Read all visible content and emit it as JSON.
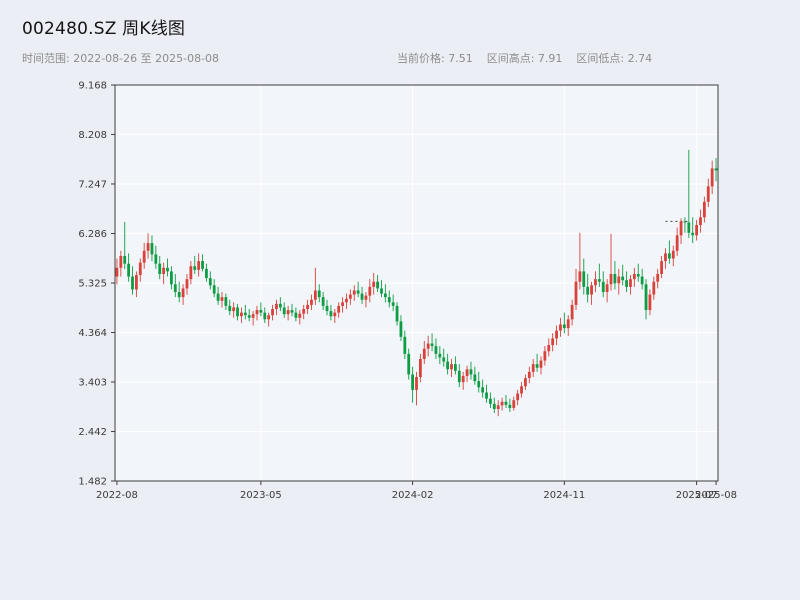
{
  "header": {
    "title": "002480.SZ 周K线图",
    "time_range_label": "时间范围: 2022-08-26 至 2025-08-08",
    "current_price_label": "当前价格: 7.51",
    "range_high_label": "区间高点: 7.91",
    "range_low_label": "区间低点: 2.74"
  },
  "colors": {
    "background": "#ebeef4",
    "plot_background": "#f2f5f9",
    "up": "#d9423b",
    "down": "#0e9d45",
    "grid": "#ffffff",
    "frame": "#3d3d3d",
    "tick_text": "#3a3a3a",
    "subtitle_text": "#8c8c8c"
  },
  "chart_data": {
    "type": "candlestick",
    "title": "002480.SZ 周K线图",
    "frequency": "weekly",
    "date_start": "2022-08-26",
    "date_end": "2025-08-08",
    "current_price": 7.51,
    "range_high": 7.91,
    "range_low": 2.74,
    "ylim": [
      1.482,
      9.168
    ],
    "y_ticks": [
      9.168,
      8.208,
      7.247,
      6.286,
      5.325,
      4.364,
      3.403,
      2.442,
      1.482
    ],
    "x_ticks": [
      {
        "label": "2022-08",
        "week": 0
      },
      {
        "label": "2023-05",
        "week": 37
      },
      {
        "label": "2024-02",
        "week": 76
      },
      {
        "label": "2024-11",
        "week": 115
      },
      {
        "label": "2025-07",
        "week": 149
      },
      {
        "label": "2025-08",
        "week": 154
      }
    ],
    "up_color": "#d9423b",
    "down_color": "#0e9d45",
    "annotations": [
      {
        "type": "dashed_hline",
        "value": 6.52,
        "week_start": 141,
        "week_end": 147,
        "color": "#444444"
      }
    ],
    "ohlc_format": [
      "open",
      "high",
      "low",
      "close"
    ],
    "candles": [
      [
        5.45,
        5.8,
        5.3,
        5.62
      ],
      [
        5.62,
        5.95,
        5.45,
        5.85
      ],
      [
        5.85,
        6.51,
        5.6,
        5.7
      ],
      [
        5.7,
        5.9,
        5.35,
        5.45
      ],
      [
        5.45,
        5.65,
        5.1,
        5.2
      ],
      [
        5.2,
        5.55,
        5.05,
        5.48
      ],
      [
        5.48,
        5.8,
        5.35,
        5.72
      ],
      [
        5.72,
        6.1,
        5.6,
        5.95
      ],
      [
        5.95,
        6.29,
        5.8,
        6.1
      ],
      [
        6.1,
        6.25,
        5.75,
        5.88
      ],
      [
        5.88,
        6.05,
        5.6,
        5.7
      ],
      [
        5.7,
        5.85,
        5.4,
        5.5
      ],
      [
        5.5,
        5.72,
        5.3,
        5.62
      ],
      [
        5.62,
        5.8,
        5.45,
        5.55
      ],
      [
        5.55,
        5.65,
        5.2,
        5.3
      ],
      [
        5.3,
        5.5,
        5.05,
        5.15
      ],
      [
        5.15,
        5.35,
        4.95,
        5.05
      ],
      [
        5.05,
        5.3,
        4.9,
        5.22
      ],
      [
        5.22,
        5.5,
        5.1,
        5.4
      ],
      [
        5.4,
        5.75,
        5.3,
        5.65
      ],
      [
        5.65,
        5.85,
        5.5,
        5.58
      ],
      [
        5.58,
        5.9,
        5.45,
        5.75
      ],
      [
        5.75,
        5.88,
        5.55,
        5.6
      ],
      [
        5.6,
        5.7,
        5.35,
        5.42
      ],
      [
        5.42,
        5.55,
        5.2,
        5.28
      ],
      [
        5.28,
        5.4,
        5.05,
        5.12
      ],
      [
        5.12,
        5.25,
        4.9,
        4.98
      ],
      [
        4.98,
        5.15,
        4.85,
        5.05
      ],
      [
        5.05,
        5.12,
        4.8,
        4.88
      ],
      [
        4.88,
        5.0,
        4.7,
        4.78
      ],
      [
        4.78,
        4.95,
        4.65,
        4.85
      ],
      [
        4.85,
        4.92,
        4.6,
        4.68
      ],
      [
        4.68,
        4.85,
        4.55,
        4.75
      ],
      [
        4.75,
        4.9,
        4.62,
        4.7
      ],
      [
        4.7,
        4.82,
        4.58,
        4.65
      ],
      [
        4.65,
        4.78,
        4.5,
        4.72
      ],
      [
        4.72,
        4.88,
        4.6,
        4.8
      ],
      [
        4.8,
        4.95,
        4.68,
        4.75
      ],
      [
        4.75,
        4.85,
        4.55,
        4.62
      ],
      [
        4.62,
        4.75,
        4.48,
        4.7
      ],
      [
        4.7,
        4.9,
        4.6,
        4.82
      ],
      [
        4.82,
        5.0,
        4.7,
        4.92
      ],
      [
        4.92,
        5.05,
        4.78,
        4.85
      ],
      [
        4.85,
        4.95,
        4.65,
        4.72
      ],
      [
        4.72,
        4.88,
        4.6,
        4.8
      ],
      [
        4.8,
        4.92,
        4.68,
        4.75
      ],
      [
        4.75,
        4.85,
        4.58,
        4.65
      ],
      [
        4.65,
        4.8,
        4.52,
        4.73
      ],
      [
        4.73,
        4.9,
        4.62,
        4.82
      ],
      [
        4.82,
        5.0,
        4.72,
        4.9
      ],
      [
        4.9,
        5.1,
        4.8,
        5.0
      ],
      [
        5.0,
        5.62,
        4.9,
        5.18
      ],
      [
        5.18,
        5.3,
        4.95,
        5.05
      ],
      [
        5.05,
        5.15,
        4.8,
        4.88
      ],
      [
        4.88,
        5.0,
        4.7,
        4.78
      ],
      [
        4.78,
        4.9,
        4.6,
        4.68
      ],
      [
        4.68,
        4.82,
        4.55,
        4.75
      ],
      [
        4.75,
        4.95,
        4.65,
        4.88
      ],
      [
        4.88,
        5.05,
        4.75,
        4.95
      ],
      [
        4.95,
        5.12,
        4.82,
        5.02
      ],
      [
        5.02,
        5.2,
        4.9,
        5.1
      ],
      [
        5.1,
        5.28,
        4.98,
        5.18
      ],
      [
        5.18,
        5.35,
        5.05,
        5.12
      ],
      [
        5.12,
        5.25,
        4.92,
        5.0
      ],
      [
        5.0,
        5.15,
        4.85,
        5.08
      ],
      [
        5.08,
        5.4,
        4.95,
        5.25
      ],
      [
        5.25,
        5.52,
        5.1,
        5.35
      ],
      [
        5.35,
        5.48,
        5.15,
        5.22
      ],
      [
        5.22,
        5.38,
        5.05,
        5.12
      ],
      [
        5.12,
        5.3,
        4.95,
        5.05
      ],
      [
        5.05,
        5.18,
        4.85,
        4.95
      ],
      [
        4.95,
        5.1,
        4.78,
        4.88
      ],
      [
        4.88,
        4.95,
        4.5,
        4.58
      ],
      [
        4.58,
        4.7,
        4.2,
        4.28
      ],
      [
        4.28,
        4.4,
        3.85,
        3.95
      ],
      [
        3.95,
        4.05,
        3.45,
        3.55
      ],
      [
        3.55,
        3.7,
        3.0,
        3.25
      ],
      [
        3.25,
        3.6,
        2.95,
        3.5
      ],
      [
        3.5,
        3.95,
        3.4,
        3.85
      ],
      [
        3.85,
        4.2,
        3.75,
        4.05
      ],
      [
        4.05,
        4.3,
        3.9,
        4.15
      ],
      [
        4.15,
        4.35,
        4.0,
        4.1
      ],
      [
        4.1,
        4.25,
        3.85,
        3.95
      ],
      [
        3.95,
        4.1,
        3.75,
        3.88
      ],
      [
        3.88,
        4.05,
        3.7,
        3.8
      ],
      [
        3.8,
        3.95,
        3.55,
        3.65
      ],
      [
        3.65,
        3.85,
        3.5,
        3.75
      ],
      [
        3.75,
        3.9,
        3.55,
        3.62
      ],
      [
        3.62,
        3.75,
        3.3,
        3.4
      ],
      [
        3.4,
        3.6,
        3.25,
        3.52
      ],
      [
        3.52,
        3.72,
        3.4,
        3.65
      ],
      [
        3.65,
        3.8,
        3.45,
        3.55
      ],
      [
        3.55,
        3.7,
        3.35,
        3.42
      ],
      [
        3.42,
        3.6,
        3.2,
        3.3
      ],
      [
        3.3,
        3.45,
        3.1,
        3.2
      ],
      [
        3.2,
        3.35,
        3.0,
        3.08
      ],
      [
        3.08,
        3.2,
        2.9,
        2.98
      ],
      [
        2.98,
        3.1,
        2.8,
        2.88
      ],
      [
        2.88,
        3.05,
        2.74,
        2.95
      ],
      [
        2.95,
        3.1,
        2.85,
        3.02
      ],
      [
        3.02,
        3.15,
        2.9,
        2.96
      ],
      [
        2.96,
        3.08,
        2.82,
        2.9
      ],
      [
        2.9,
        3.12,
        2.85,
        3.05
      ],
      [
        3.05,
        3.25,
        2.95,
        3.18
      ],
      [
        3.18,
        3.4,
        3.1,
        3.32
      ],
      [
        3.32,
        3.55,
        3.25,
        3.48
      ],
      [
        3.48,
        3.7,
        3.38,
        3.6
      ],
      [
        3.6,
        3.85,
        3.5,
        3.75
      ],
      [
        3.75,
        3.95,
        3.6,
        3.68
      ],
      [
        3.68,
        3.9,
        3.55,
        3.82
      ],
      [
        3.82,
        4.1,
        3.72,
        4.0
      ],
      [
        4.0,
        4.25,
        3.9,
        4.12
      ],
      [
        4.12,
        4.35,
        4.0,
        4.25
      ],
      [
        4.25,
        4.5,
        4.12,
        4.4
      ],
      [
        4.4,
        4.65,
        4.28,
        4.52
      ],
      [
        4.52,
        4.75,
        4.35,
        4.45
      ],
      [
        4.45,
        4.7,
        4.3,
        4.62
      ],
      [
        4.62,
        5.0,
        4.5,
        4.9
      ],
      [
        4.9,
        5.6,
        4.8,
        5.35
      ],
      [
        5.35,
        6.3,
        5.2,
        5.55
      ],
      [
        5.55,
        5.8,
        5.1,
        5.25
      ],
      [
        5.25,
        5.5,
        4.95,
        5.1
      ],
      [
        5.1,
        5.35,
        4.9,
        5.28
      ],
      [
        5.28,
        5.55,
        5.15,
        5.4
      ],
      [
        5.4,
        5.7,
        5.25,
        5.35
      ],
      [
        5.35,
        5.55,
        5.05,
        5.15
      ],
      [
        5.15,
        5.4,
        4.95,
        5.3
      ],
      [
        5.3,
        6.28,
        5.18,
        5.5
      ],
      [
        5.5,
        5.75,
        5.2,
        5.32
      ],
      [
        5.32,
        5.6,
        5.1,
        5.45
      ],
      [
        5.45,
        5.68,
        5.28,
        5.38
      ],
      [
        5.38,
        5.55,
        5.15,
        5.25
      ],
      [
        5.25,
        5.48,
        5.1,
        5.4
      ],
      [
        5.4,
        5.62,
        5.25,
        5.5
      ],
      [
        5.5,
        5.7,
        5.35,
        5.45
      ],
      [
        5.45,
        5.6,
        5.2,
        5.3
      ],
      [
        5.3,
        5.4,
        4.62,
        4.8
      ],
      [
        4.8,
        5.2,
        4.7,
        5.1
      ],
      [
        5.1,
        5.45,
        5.0,
        5.35
      ],
      [
        5.35,
        5.6,
        5.22,
        5.5
      ],
      [
        5.5,
        5.85,
        5.42,
        5.75
      ],
      [
        5.75,
        6.0,
        5.6,
        5.9
      ],
      [
        5.9,
        6.15,
        5.7,
        5.8
      ],
      [
        5.8,
        6.05,
        5.65,
        5.95
      ],
      [
        5.95,
        6.4,
        5.85,
        6.25
      ],
      [
        6.25,
        6.58,
        6.08,
        6.52
      ],
      [
        6.52,
        6.6,
        6.3,
        6.5
      ],
      [
        6.5,
        7.91,
        6.2,
        6.3
      ],
      [
        6.3,
        6.6,
        6.1,
        6.25
      ],
      [
        6.25,
        6.55,
        6.15,
        6.45
      ],
      [
        6.45,
        6.75,
        6.3,
        6.6
      ],
      [
        6.6,
        7.0,
        6.5,
        6.9
      ],
      [
        6.9,
        7.35,
        6.8,
        7.2
      ],
      [
        7.2,
        7.7,
        7.05,
        7.55
      ],
      [
        7.55,
        7.75,
        7.3,
        7.51
      ]
    ]
  }
}
